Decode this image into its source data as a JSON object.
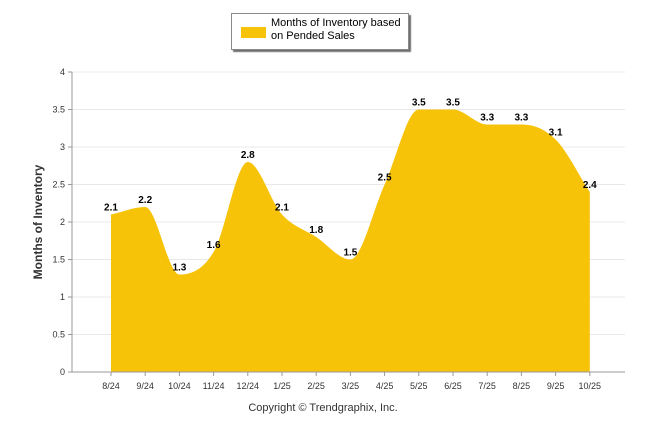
{
  "legend": {
    "label": "Months of Inventory based on Pended Sales"
  },
  "copyright": "Copyright © Trendgraphix, Inc.",
  "chart_data": {
    "type": "area",
    "title": "",
    "xlabel": "",
    "ylabel": "Months of Inventory",
    "categories": [
      "8/24",
      "9/24",
      "10/24",
      "11/24",
      "12/24",
      "1/25",
      "2/25",
      "3/25",
      "4/25",
      "5/25",
      "6/25",
      "7/25",
      "8/25",
      "9/25",
      "10/25"
    ],
    "series": [
      {
        "name": "Months of Inventory based on Pended Sales",
        "values": [
          2.1,
          2.2,
          1.3,
          1.6,
          2.8,
          2.1,
          1.8,
          1.5,
          2.5,
          3.5,
          3.5,
          3.3,
          3.3,
          3.1,
          2.4
        ],
        "color": "#F7C308"
      }
    ],
    "ylim": [
      0,
      4
    ],
    "yticks": [
      "0",
      "0.5",
      "1",
      "1.5",
      "2",
      "2.5",
      "3",
      "3.5",
      "4"
    ],
    "grid": true,
    "legend_position": "top-center"
  }
}
